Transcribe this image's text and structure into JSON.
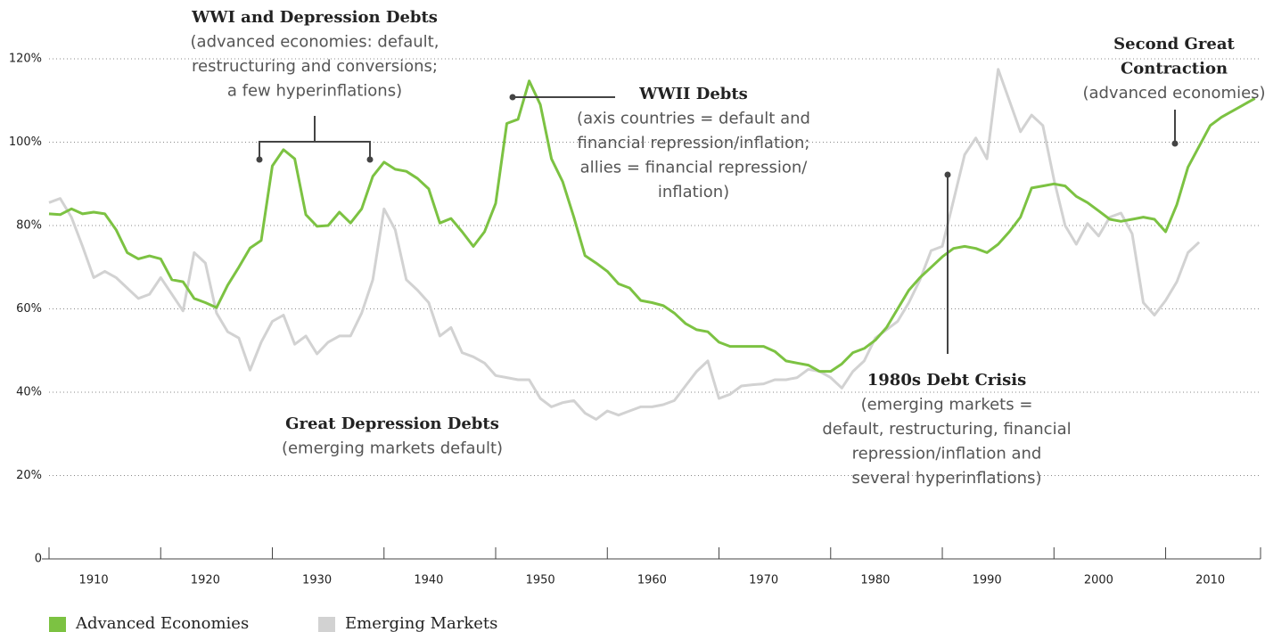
{
  "chart_data": {
    "type": "line",
    "x": [
      1906,
      1907,
      1908,
      1909,
      1910,
      1911,
      1912,
      1913,
      1914,
      1915,
      1916,
      1917,
      1918,
      1919,
      1920,
      1921,
      1922,
      1923,
      1924,
      1925,
      1926,
      1927,
      1928,
      1929,
      1930,
      1931,
      1932,
      1933,
      1934,
      1935,
      1936,
      1937,
      1938,
      1939,
      1940,
      1941,
      1942,
      1943,
      1944,
      1945,
      1946,
      1947,
      1948,
      1949,
      1950,
      1951,
      1952,
      1953,
      1954,
      1955,
      1956,
      1957,
      1958,
      1959,
      1960,
      1961,
      1962,
      1963,
      1964,
      1965,
      1966,
      1967,
      1968,
      1969,
      1970,
      1971,
      1972,
      1973,
      1974,
      1975,
      1976,
      1977,
      1978,
      1979,
      1980,
      1981,
      1982,
      1983,
      1984,
      1985,
      1986,
      1987,
      1988,
      1989,
      1990,
      1991,
      1992,
      1993,
      1994,
      1995,
      1996,
      1997,
      1998,
      1999,
      2000,
      2001,
      2002,
      2003,
      2004,
      2005,
      2006,
      2007,
      2008,
      2009,
      2010,
      2011,
      2012,
      2013,
      2014
    ],
    "series": [
      {
        "name": "Advanced Economies",
        "color": "#7cc242",
        "values": [
          82.8,
          82.6,
          84,
          82.8,
          83.2,
          82.8,
          79,
          73.5,
          72,
          72.7,
          72,
          67,
          66.5,
          62.5,
          61.5,
          60.3,
          65.7,
          70,
          74.6,
          76.4,
          94.3,
          98.2,
          96,
          82.6,
          79.8,
          80,
          83.2,
          80.6,
          84,
          91.8,
          95.2,
          93.5,
          93,
          91.3,
          88.8,
          80.6,
          81.7,
          78.5,
          75,
          78.5,
          85.3,
          104.5,
          105.5,
          114.7,
          109,
          96,
          90.5,
          82,
          72.8,
          71,
          69,
          66,
          65,
          62,
          61.5,
          60.8,
          59,
          56.5,
          55,
          54.5,
          52,
          51,
          51,
          51,
          51,
          49.8,
          47.5,
          47,
          46.5,
          45,
          45,
          46.8,
          49.5,
          50.5,
          52.5,
          55.5,
          60,
          64.5,
          67.5,
          70,
          72.5,
          74.5,
          75,
          74.5,
          73.5,
          75.5,
          78.5,
          82,
          89,
          89.5,
          90,
          89.5,
          87,
          85.5,
          83.5,
          81.5,
          81,
          81.5,
          82,
          81.5,
          78.5,
          85,
          94,
          99,
          104,
          106,
          107.5,
          109,
          110.5
        ]
      },
      {
        "name": "Emerging Markets",
        "color": "#d2d2d2",
        "values": [
          85.5,
          86.5,
          82,
          75,
          67.5,
          69,
          67.5,
          65,
          62.5,
          63.5,
          67.5,
          63.5,
          59.5,
          73.5,
          71,
          59,
          54.5,
          53,
          45.3,
          52,
          57,
          58.5,
          51.5,
          53.5,
          49.2,
          52,
          53.5,
          53.5,
          59,
          67,
          84,
          79,
          67,
          64.5,
          61.5,
          53.5,
          55.5,
          49.5,
          48.5,
          47,
          44,
          43.5,
          43,
          43,
          38.5,
          36.5,
          37.5,
          38,
          35,
          33.5,
          35.5,
          34.5,
          35.5,
          36.5,
          36.5,
          37,
          38,
          41.5,
          45,
          47.5,
          38.5,
          39.5,
          41.5,
          41.8,
          42,
          43,
          43,
          43.5,
          45.5,
          45,
          43.5,
          41,
          45,
          47.5,
          53,
          55,
          57,
          61.5,
          67,
          74,
          75,
          86,
          97,
          101,
          96,
          117.5,
          110,
          102.5,
          106.5,
          104,
          91,
          80,
          75.5,
          80.5,
          77.5,
          82,
          83,
          78,
          61.5,
          58.5,
          62,
          66.5,
          73.5,
          76,
          null,
          null,
          null,
          null,
          null
        ]
      }
    ],
    "xlim": [
      1906,
      2014.5
    ],
    "xticks": [
      1910,
      1920,
      1930,
      1940,
      1950,
      1960,
      1970,
      1980,
      1990,
      2000,
      2010
    ],
    "ylim": [
      0,
      120
    ],
    "yticks": [
      0,
      {
        "value": 20,
        "label": "20%"
      },
      {
        "value": 40,
        "label": "40%"
      },
      {
        "value": 60,
        "label": "60%"
      },
      {
        "value": 80,
        "label": "80%"
      },
      {
        "value": 100,
        "label": "100%"
      },
      {
        "value": 120,
        "label": "120%"
      }
    ],
    "grid": true,
    "legend": "bottom-left",
    "annotations": [
      {
        "title": [
          "WWI and Depression Debts"
        ],
        "text": [
          "(advanced economies: default,",
          "restructuring and conversions;",
          "a few hyperinflations)"
        ]
      },
      {
        "title": [
          "WWII Debts"
        ],
        "text": [
          "(axis countries = default and",
          "financial repression/inflation;",
          "allies = financial repression/",
          "inflation)"
        ]
      },
      {
        "title": [
          "Great Depression Debts"
        ],
        "text": [
          "(emerging markets default)"
        ]
      },
      {
        "title": [
          "1980s Debt Crisis"
        ],
        "text": [
          "(emerging markets =",
          "default, restructuring, financial",
          "repression/inflation and",
          "several hyperinflations)"
        ]
      },
      {
        "title": [
          "Second Great",
          "Contraction"
        ],
        "text": [
          "(advanced economies)"
        ]
      }
    ]
  }
}
